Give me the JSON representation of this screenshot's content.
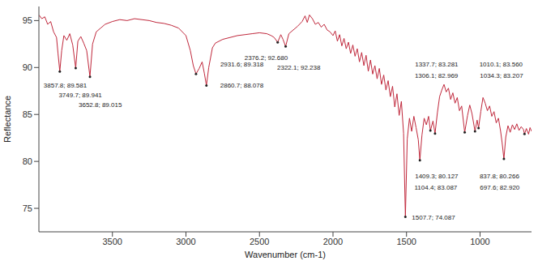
{
  "chart_data": {
    "type": "line",
    "x_label": "Wavenumber (cm-1)",
    "y_label": "Reflectance",
    "color": "#c0283c",
    "grid": false,
    "xlim": [
      4000,
      650
    ],
    "xticks": [
      3500,
      3000,
      2500,
      2000,
      1500,
      1000
    ],
    "ylim": [
      72.5,
      96.5
    ],
    "yticks": [
      75,
      80,
      85,
      90,
      95
    ],
    "x": [
      4000,
      3980,
      3960,
      3940,
      3920,
      3900,
      3880,
      3870,
      3857.8,
      3845,
      3830,
      3810,
      3790,
      3770,
      3749.7,
      3735,
      3715,
      3695,
      3675,
      3652.8,
      3635,
      3610,
      3580,
      3550,
      3500,
      3450,
      3400,
      3350,
      3300,
      3250,
      3200,
      3150,
      3100,
      3050,
      3000,
      2970,
      2950,
      2931.6,
      2910,
      2890,
      2875,
      2860.7,
      2845,
      2820,
      2800,
      2750,
      2700,
      2650,
      2600,
      2550,
      2500,
      2450,
      2420,
      2400,
      2376.2,
      2355,
      2340,
      2322.1,
      2300,
      2270,
      2240,
      2210,
      2190,
      2175,
      2160,
      2140,
      2120,
      2100,
      2080,
      2060,
      2040,
      2020,
      2000,
      1985,
      1970,
      1955,
      1940,
      1925,
      1910,
      1895,
      1880,
      1865,
      1850,
      1835,
      1820,
      1805,
      1790,
      1775,
      1760,
      1745,
      1730,
      1715,
      1700,
      1685,
      1670,
      1655,
      1640,
      1625,
      1610,
      1595,
      1580,
      1565,
      1550,
      1535,
      1520,
      1507.7,
      1495,
      1480,
      1465,
      1450,
      1435,
      1420,
      1409.3,
      1395,
      1380,
      1365,
      1350,
      1337.7,
      1320,
      1306.1,
      1290,
      1275,
      1260,
      1245,
      1230,
      1215,
      1200,
      1185,
      1170,
      1155,
      1140,
      1125,
      1104.4,
      1085,
      1070,
      1055,
      1034.3,
      1020,
      1010.1,
      995,
      980,
      965,
      950,
      935,
      920,
      905,
      890,
      875,
      860,
      850,
      837.8,
      825,
      810,
      795,
      780,
      765,
      750,
      735,
      720,
      705,
      697.6,
      685,
      670,
      660,
      650
    ],
    "values": [
      95.6,
      95.2,
      95.4,
      94.6,
      94.9,
      93.8,
      93.2,
      91.5,
      89.581,
      91.8,
      93.4,
      92.9,
      93.6,
      92.4,
      89.941,
      92.8,
      93.3,
      92.6,
      91.8,
      89.015,
      92.5,
      93.8,
      94.2,
      94.6,
      94.9,
      95.1,
      95.0,
      95.2,
      95.1,
      95.0,
      94.8,
      94.7,
      94.5,
      94.2,
      93.4,
      91.8,
      90.2,
      89.318,
      89.9,
      90.6,
      89.4,
      88.078,
      90.0,
      92.1,
      92.6,
      93.0,
      93.2,
      93.4,
      93.5,
      93.6,
      93.7,
      93.6,
      93.4,
      93.2,
      92.68,
      93.5,
      93.0,
      92.238,
      93.6,
      94.0,
      94.4,
      94.9,
      95.5,
      94.8,
      95.6,
      95.2,
      94.6,
      94.8,
      94.3,
      94.6,
      94.0,
      93.8,
      93.4,
      93.9,
      92.8,
      93.5,
      92.3,
      93.1,
      92.0,
      92.7,
      91.5,
      92.4,
      91.2,
      92.0,
      90.6,
      91.6,
      90.2,
      91.3,
      89.6,
      90.8,
      89.3,
      90.2,
      88.8,
      89.9,
      88.2,
      89.2,
      87.6,
      88.6,
      86.9,
      88.0,
      85.8,
      87.2,
      84.9,
      86.4,
      83.0,
      74.087,
      82.4,
      84.6,
      83.2,
      84.8,
      83.6,
      82.3,
      80.127,
      82.8,
      84.6,
      83.9,
      84.8,
      83.281,
      84.3,
      82.969,
      85.2,
      86.9,
      87.6,
      88.2,
      87.4,
      87.8,
      86.6,
      87.3,
      86.2,
      86.8,
      85.4,
      85.9,
      83.087,
      84.9,
      86.0,
      85.1,
      83.207,
      84.4,
      83.56,
      85.3,
      86.8,
      86.2,
      85.4,
      85.9,
      84.8,
      85.3,
      84.1,
      84.6,
      83.2,
      82.0,
      80.266,
      82.6,
      83.8,
      83.1,
      83.9,
      83.4,
      84.0,
      83.3,
      83.7,
      83.4,
      82.92,
      83.5,
      82.9,
      83.6,
      83.2
    ],
    "annotations": [
      {
        "x": 3857.8,
        "y": 89.581,
        "label": "3857.8; 89.581"
      },
      {
        "x": 3749.7,
        "y": 89.941,
        "label": "3749.7; 89.941"
      },
      {
        "x": 3652.8,
        "y": 89.015,
        "label": "3652.8; 89.015"
      },
      {
        "x": 2931.6,
        "y": 89.318,
        "label": "2931.6; 89.318"
      },
      {
        "x": 2860.7,
        "y": 88.078,
        "label": "2860.7; 88.078"
      },
      {
        "x": 2376.2,
        "y": 92.68,
        "label": "2376.2; 92.680"
      },
      {
        "x": 2322.1,
        "y": 92.238,
        "label": "2322.1; 92.238"
      },
      {
        "x": 1507.7,
        "y": 74.087,
        "label": "1507.7; 74.087"
      },
      {
        "x": 1337.7,
        "y": 83.281,
        "label": "1337.7; 83.281"
      },
      {
        "x": 1306.1,
        "y": 82.969,
        "label": "1306.1; 82.969"
      },
      {
        "x": 1409.3,
        "y": 80.127,
        "label": "1409.3; 80.127"
      },
      {
        "x": 1010.1,
        "y": 83.56,
        "label": "1010.1; 83.560"
      },
      {
        "x": 697.6,
        "y": 82.92,
        "label": "697.6; 82.920"
      },
      {
        "x": 1104.4,
        "y": 83.087,
        "label": "1104.4; 83.087"
      },
      {
        "x": 1034.3,
        "y": 83.207,
        "label": "1034.3; 83.207"
      },
      {
        "x": 837.8,
        "y": 80.266,
        "label": "837.8; 80.266"
      }
    ]
  }
}
